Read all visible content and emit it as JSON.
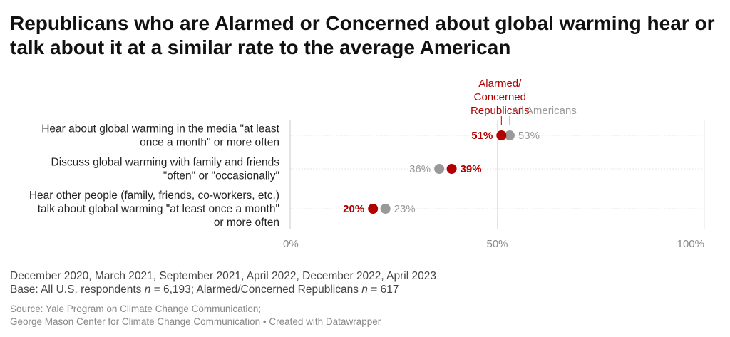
{
  "title": "Republicans who are Alarmed or Concerned about global warming hear or talk about it at a similar rate to the average American",
  "notes": {
    "dates": "December 2020, March 2021, September 2021, April 2022, December 2022, April 2023",
    "base_prefix": "Base: All U.S. respondents ",
    "n_symbol": "n",
    "base_mid": " = 6,193; Alarmed/Concerned Republicans ",
    "base_end": " = 617"
  },
  "source": {
    "line1": "Source: Yale Program on Climate Change Communication;",
    "line2": "George Mason Center for Climate Change Communication • Created with Datawrapper"
  },
  "colors": {
    "alarmed_republicans": "#b20000",
    "all_americans": "#999999",
    "grid": "#e4e4e4",
    "axis_text": "#888888",
    "row_label": "#222222"
  },
  "chart_data": {
    "type": "dot",
    "xlim": [
      0,
      100
    ],
    "x_ticks": [
      {
        "value": 0,
        "label": "0%"
      },
      {
        "value": 50,
        "label": "50%"
      },
      {
        "value": 100,
        "label": "100%"
      }
    ],
    "categories": [
      [
        "Hear about global warming in the media \"at least",
        "once a month\" or more often"
      ],
      [
        "Discuss global warming with family and friends",
        "\"often\" or \"occasionally\""
      ],
      [
        "Hear other people (family, friends, co-workers, etc.)",
        "talk about global warming \"at least once a month\"",
        "or more often"
      ]
    ],
    "series": [
      {
        "name": "Alarmed/ Concerned Republicans",
        "legend_lines": [
          "Alarmed/",
          "Concerned",
          "Republicans"
        ],
        "color": "#b20000",
        "values": [
          51,
          39,
          20
        ],
        "labels": [
          "51%",
          "39%",
          "20%"
        ]
      },
      {
        "name": "All Americans",
        "legend_lines": [
          "All Americans"
        ],
        "color": "#999999",
        "values": [
          53,
          36,
          23
        ],
        "labels": [
          "53%",
          "36%",
          "23%"
        ]
      }
    ]
  }
}
